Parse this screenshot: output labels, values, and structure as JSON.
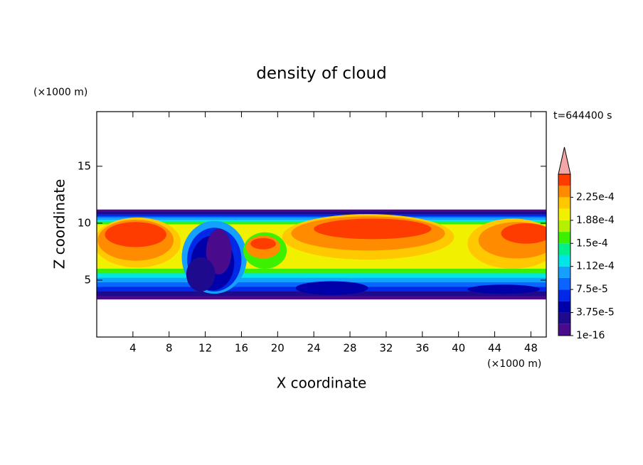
{
  "chart_data": {
    "type": "contour",
    "title": "density of cloud",
    "x_label": "X coordinate",
    "y_label": "Z coordinate",
    "x_unit": "(×1000 m)",
    "y_unit": "(×1000 m)",
    "time_label": "t=644400 s",
    "xlim": [
      0,
      49.7
    ],
    "ylim": [
      0,
      19.8
    ],
    "xticks": [
      4,
      8,
      12,
      16,
      20,
      24,
      28,
      32,
      36,
      40,
      44,
      48
    ],
    "yticks": [
      5,
      10,
      15
    ],
    "colorbar": {
      "lim": [
        0,
        0.0002625
      ],
      "ticks": [
        1e-16,
        {
          "value": 3.75e-05,
          "label": "3.75e-5"
        },
        {
          "value": 7.5e-05,
          "label": "7.5e-5"
        },
        {
          "value": 0.0001125,
          "label": "1.12e-4"
        },
        {
          "value": 0.00015,
          "label": "1.5e-4"
        },
        {
          "value": 0.0001875,
          "label": "1.88e-4"
        },
        {
          "value": 0.000225,
          "label": "2.25e-4"
        }
      ],
      "colors": [
        "#4a0a8c",
        "#1e0a8c",
        "#0000aa",
        "#0028e6",
        "#0a64ff",
        "#14a0ff",
        "#00e6e6",
        "#00f08c",
        "#3cf000",
        "#b4f000",
        "#f0f000",
        "#ffc800",
        "#ff8c00",
        "#ff3c00"
      ],
      "extend_color": "#f4a6a6"
    }
  }
}
